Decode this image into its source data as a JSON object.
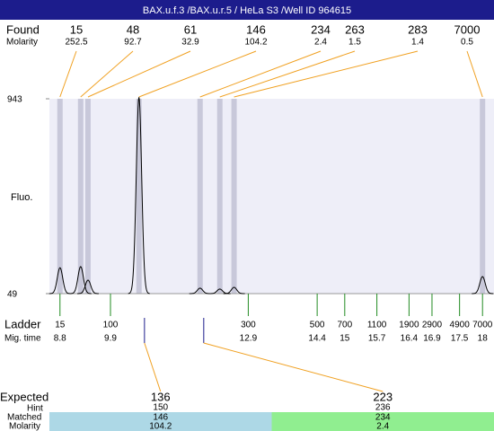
{
  "chart_data": {
    "type": "electropherogram",
    "title": "BAX.u.f.3 /BAX.u.r.5 / HeLa S3 /Well ID 964615",
    "ylabel": "Fluo.",
    "ylim": [
      49,
      943
    ],
    "yticks": [
      49,
      943
    ],
    "xlim": [
      8.57,
      18.25
    ],
    "xticks": [
      8.8,
      9.9,
      12.9,
      14.4,
      15,
      15.7,
      16.4,
      16.9,
      17.5,
      18
    ],
    "xtick_title": "Mig. time",
    "ladder_title": "Ladder",
    "ladder_sizes": [
      15,
      100,
      300,
      500,
      700,
      1100,
      1900,
      2900,
      4900,
      7000
    ],
    "found_title": "Found",
    "molarity_title": "Molarity",
    "peaks": {
      "sizes": [
        15,
        48,
        61,
        146,
        234,
        263,
        283,
        7000
      ],
      "molarity": [
        252.5,
        92.7,
        32.9,
        104.2,
        2.4,
        1.5,
        1.4,
        0.5
      ],
      "x": [
        8.8,
        9.25,
        9.41,
        10.52,
        11.85,
        12.28,
        12.59,
        18
      ],
      "heights": [
        168,
        173,
        111,
        950,
        74,
        70,
        78,
        127
      ]
    },
    "expected_title": "Expected",
    "hint_title": "Hint",
    "matched_title": "Matched",
    "expected": {
      "sizes": [
        136,
        223
      ],
      "x": [
        10.64,
        11.93
      ],
      "hint": [
        150,
        236
      ],
      "matched": [
        146,
        234
      ],
      "molarity": [
        104.2,
        2.4
      ],
      "colors": [
        "#add8e6",
        "#90ee90"
      ]
    },
    "colors": {
      "header": "#1c1c8c",
      "plot": "#eeeef8",
      "band": "#c8c8da",
      "connector": "#f0a020",
      "ladder_tick": "#228b22",
      "expected_tick": "#1c1c8c",
      "trace": "#000000"
    }
  }
}
